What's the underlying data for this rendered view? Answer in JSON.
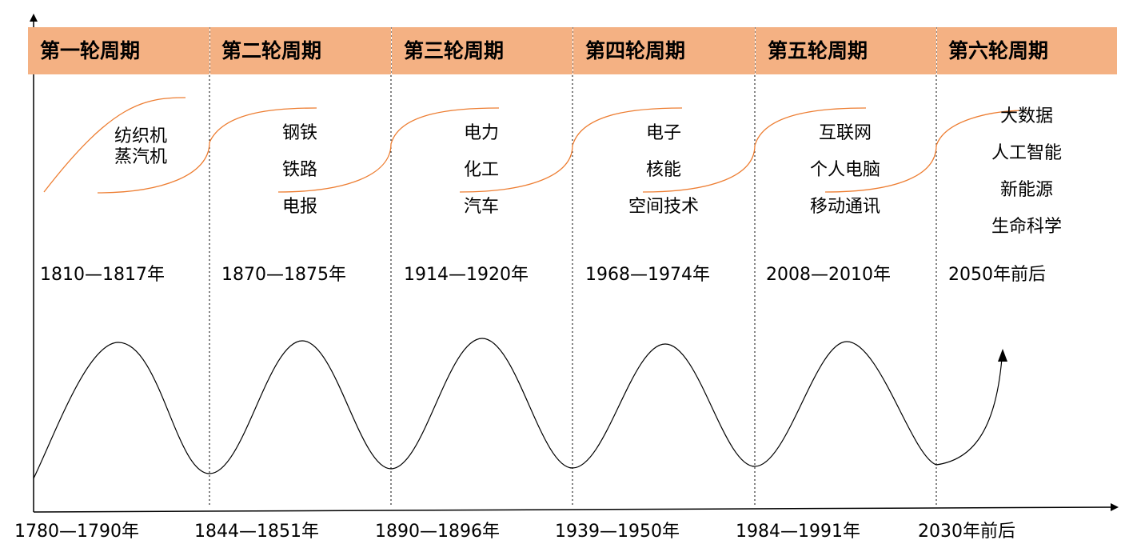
{
  "cycles": [
    {
      "title": "第一轮周期",
      "techs": [
        "纺织机",
        "蒸汽机"
      ],
      "peak_years": "1810—1817年",
      "trough_years": "1780—1790年"
    },
    {
      "title": "第二轮周期",
      "techs": [
        "钢铁",
        "铁路",
        "电报"
      ],
      "peak_years": "1870—1875年",
      "trough_years": "1844—1851年"
    },
    {
      "title": "第三轮周期",
      "techs": [
        "电力",
        "化工",
        "汽车"
      ],
      "peak_years": "1914—1920年",
      "trough_years": "1890—1896年"
    },
    {
      "title": "第四轮周期",
      "techs": [
        "电子",
        "核能",
        "空间技术"
      ],
      "peak_years": "1968—1974年",
      "trough_years": "1939—1950年"
    },
    {
      "title": "第五轮周期",
      "techs": [
        "互联网",
        "个人电脑",
        "移动通讯"
      ],
      "peak_years": "2008—2010年",
      "trough_years": "1984—1991年"
    },
    {
      "title": "第六轮周期",
      "techs": [
        "大数据",
        "人工智能",
        "新能源",
        "生命科学"
      ],
      "peak_years": "2050年前后",
      "trough_years": "2030年前后"
    }
  ],
  "colors": {
    "header_fill": "#f4b183",
    "s_curve": "#ed7d31",
    "wave": "#000000",
    "divider": "#000000"
  }
}
